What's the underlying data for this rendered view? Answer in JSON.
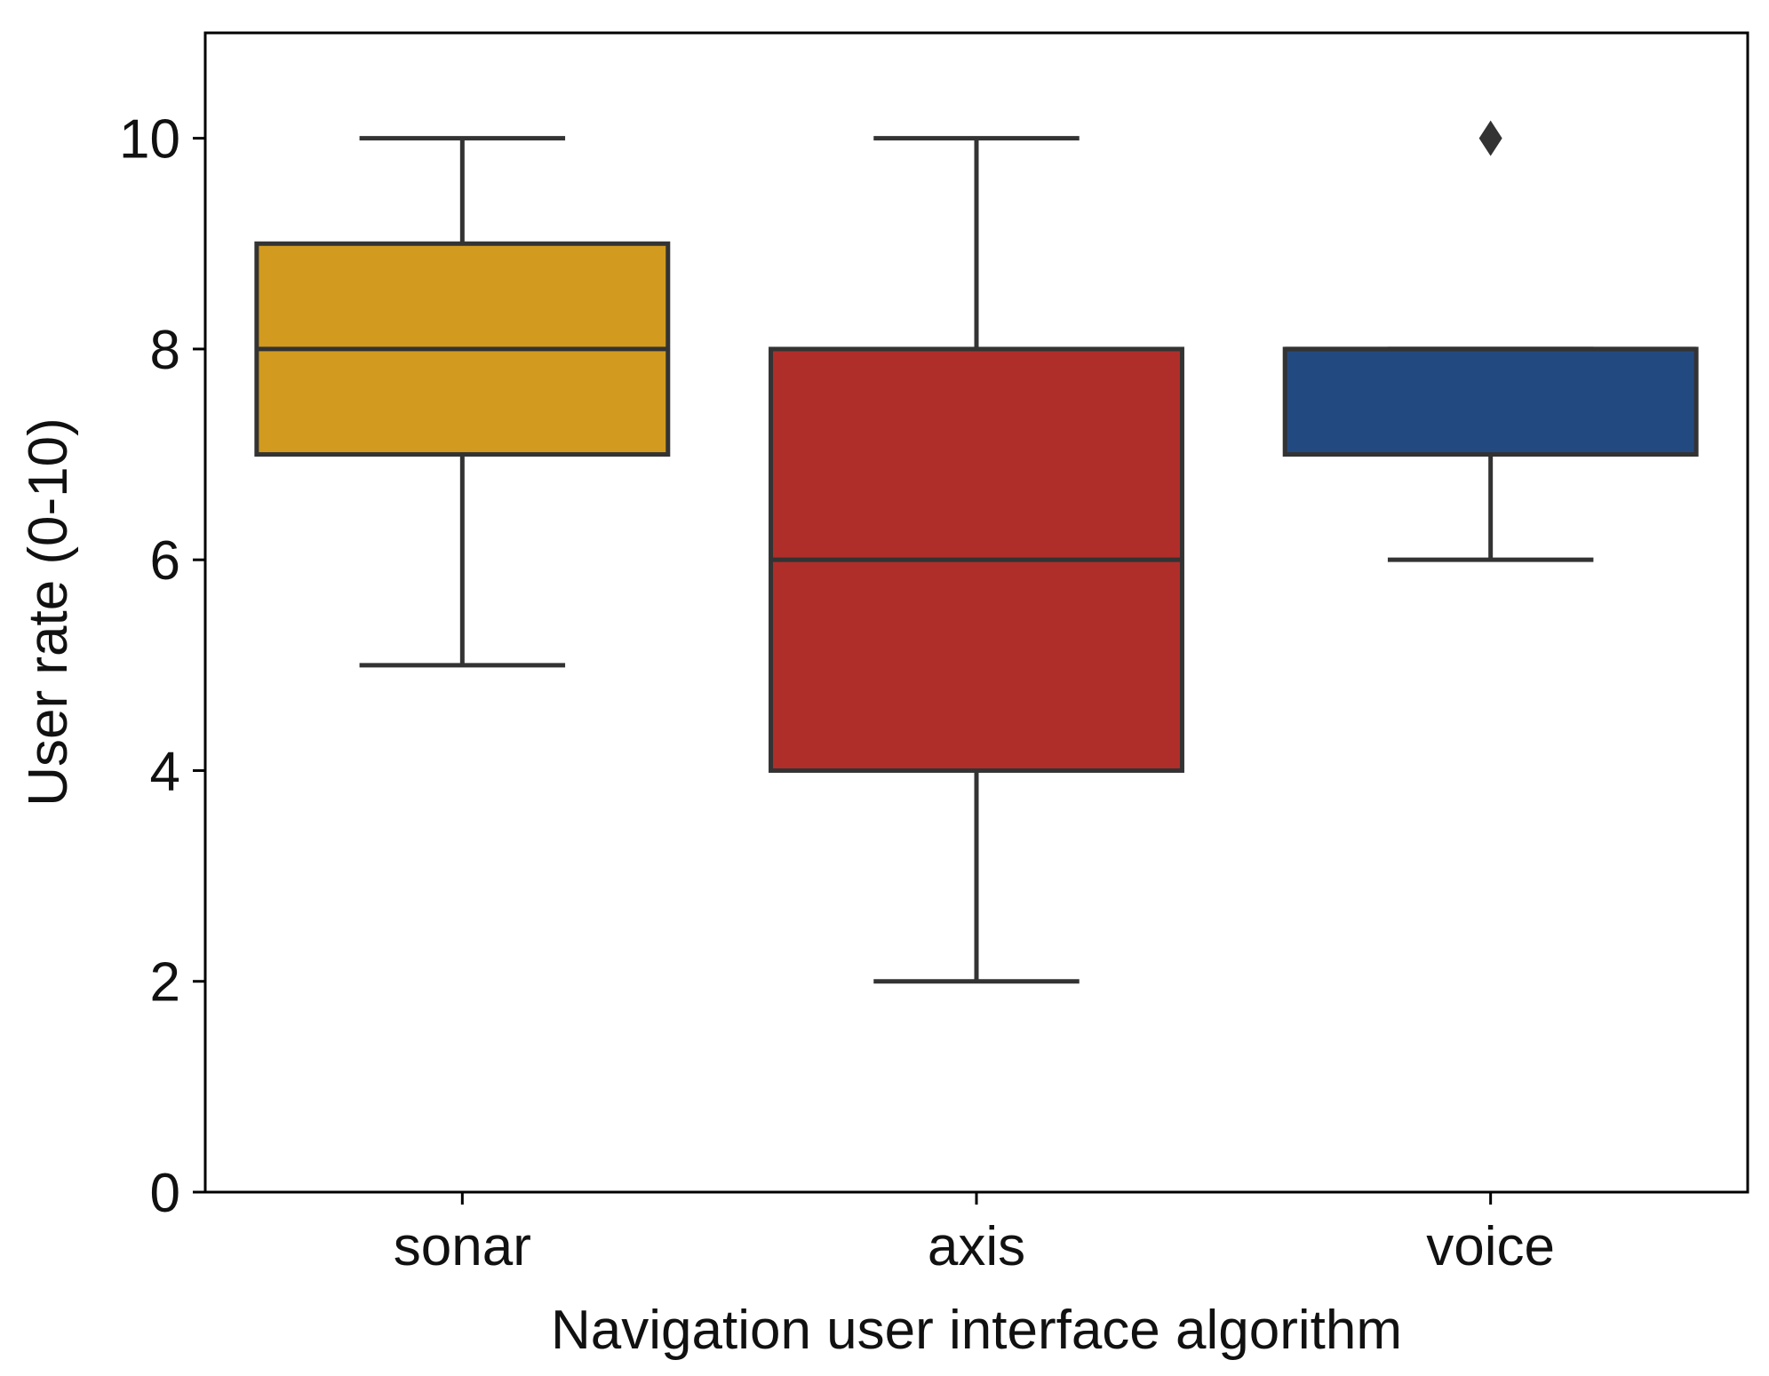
{
  "chart_data": {
    "type": "boxplot",
    "title": "",
    "xlabel": "Navigation user interface algorithm",
    "ylabel": "User rate (0-10)",
    "ylim": [
      0,
      11
    ],
    "yticks": [
      0,
      2,
      4,
      6,
      8,
      10
    ],
    "grid": false,
    "categories": [
      "sonar",
      "axis",
      "voice"
    ],
    "boxes": [
      {
        "category": "sonar",
        "whisker_low": 5,
        "q1": 7,
        "median": 8,
        "q3": 9,
        "whisker_high": 10,
        "outliers": [],
        "color": "#d29b1f"
      },
      {
        "category": "axis",
        "whisker_low": 2,
        "q1": 4,
        "median": 6,
        "q3": 8,
        "whisker_high": 10,
        "outliers": [],
        "color": "#b02e2a"
      },
      {
        "category": "voice",
        "whisker_low": 6,
        "q1": 7,
        "median": 8,
        "q3": 8,
        "whisker_high": 8,
        "outliers": [
          10
        ],
        "color": "#234a80"
      }
    ],
    "line_color": "#333333"
  }
}
